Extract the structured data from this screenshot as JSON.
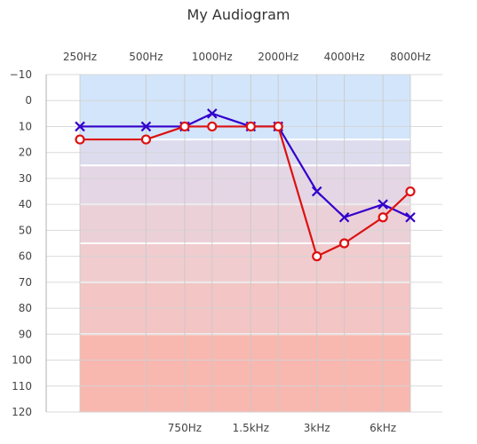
{
  "chart_data": {
    "type": "line",
    "title": "My Audiogram",
    "top_x_labels": [
      "250Hz",
      "500Hz",
      "1000Hz",
      "2000Hz",
      "4000Hz",
      "8000Hz"
    ],
    "bottom_x_labels": [
      "750Hz",
      "1.5kHz",
      "3kHz",
      "6kHz"
    ],
    "frequencies": [
      250,
      500,
      750,
      1000,
      1500,
      2000,
      3000,
      4000,
      6000,
      8000
    ],
    "y_ticks": [
      -10,
      0,
      10,
      20,
      30,
      40,
      50,
      60,
      70,
      80,
      90,
      100,
      110,
      120
    ],
    "ylim": [
      -10,
      120
    ],
    "y_inverted": true,
    "grid": true,
    "hearing_bands": [
      {
        "from": -10,
        "to": 15,
        "color": "#d3e5fa"
      },
      {
        "from": 15,
        "to": 25,
        "color": "#dcdcee"
      },
      {
        "from": 25,
        "to": 40,
        "color": "#e4d6e4"
      },
      {
        "from": 40,
        "to": 55,
        "color": "#ecd0d8"
      },
      {
        "from": 55,
        "to": 70,
        "color": "#f0cccf"
      },
      {
        "from": 70,
        "to": 90,
        "color": "#f3c5c5"
      },
      {
        "from": 90,
        "to": 120,
        "color": "#f8b8b0"
      }
    ],
    "series": [
      {
        "marker": "x",
        "color": "#3300cc",
        "points": [
          {
            "f": 250,
            "db": 10
          },
          {
            "f": 500,
            "db": 10
          },
          {
            "f": 750,
            "db": 10
          },
          {
            "f": 1000,
            "db": 5
          },
          {
            "f": 1500,
            "db": 10
          },
          {
            "f": 2000,
            "db": 10
          },
          {
            "f": 3000,
            "db": 35
          },
          {
            "f": 4000,
            "db": 45
          },
          {
            "f": 6000,
            "db": 40
          },
          {
            "f": 8000,
            "db": 45
          }
        ]
      },
      {
        "marker": "o",
        "color": "#dd1111",
        "points": [
          {
            "f": 250,
            "db": 15
          },
          {
            "f": 500,
            "db": 15
          },
          {
            "f": 750,
            "db": 10
          },
          {
            "f": 1000,
            "db": 10
          },
          {
            "f": 1500,
            "db": 10
          },
          {
            "f": 2000,
            "db": 10
          },
          {
            "f": 3000,
            "db": 60
          },
          {
            "f": 4000,
            "db": 55
          },
          {
            "f": 6000,
            "db": 45
          },
          {
            "f": 8000,
            "db": 35
          }
        ]
      }
    ]
  }
}
